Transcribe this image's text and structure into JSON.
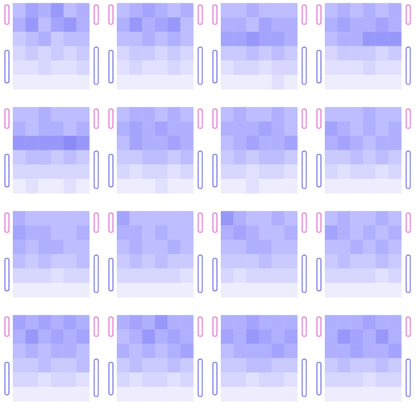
{
  "chart_data": [
    {
      "type": "heatmap",
      "tick_labels": false,
      "grid": false,
      "value_range": [
        0,
        10
      ],
      "cells": [
        [
          5,
          7,
          6,
          8,
          5,
          6
        ],
        [
          6,
          8,
          5,
          7,
          8,
          6
        ],
        [
          4,
          5,
          6,
          4,
          5,
          5
        ],
        [
          3,
          4,
          3,
          4,
          3,
          4
        ],
        [
          2,
          2,
          3,
          2,
          2,
          3
        ],
        [
          1,
          1,
          1,
          1,
          1,
          1
        ]
      ]
    },
    {
      "type": "heatmap",
      "tick_labels": false,
      "grid": false,
      "value_range": [
        0,
        10
      ],
      "cells": [
        [
          5,
          6,
          7,
          6,
          5,
          6
        ],
        [
          6,
          8,
          6,
          7,
          8,
          5
        ],
        [
          5,
          5,
          6,
          5,
          6,
          5
        ],
        [
          3,
          4,
          4,
          3,
          4,
          3
        ],
        [
          2,
          3,
          2,
          2,
          3,
          2
        ],
        [
          1,
          1,
          1,
          1,
          1,
          1
        ]
      ]
    },
    {
      "type": "heatmap",
      "tick_labels": false,
      "grid": false,
      "value_range": [
        0,
        10
      ],
      "cells": [
        [
          5,
          5,
          6,
          5,
          5,
          5
        ],
        [
          6,
          6,
          5,
          7,
          6,
          6
        ],
        [
          7,
          7,
          8,
          7,
          7,
          6
        ],
        [
          4,
          4,
          5,
          4,
          5,
          4
        ],
        [
          2,
          3,
          3,
          2,
          3,
          3
        ],
        [
          1,
          1,
          1,
          1,
          2,
          1
        ]
      ]
    },
    {
      "type": "heatmap",
      "tick_labels": false,
      "grid": false,
      "value_range": [
        0,
        10
      ],
      "cells": [
        [
          5,
          6,
          5,
          6,
          5,
          6
        ],
        [
          6,
          7,
          6,
          6,
          7,
          6
        ],
        [
          5,
          6,
          6,
          8,
          8,
          8
        ],
        [
          3,
          4,
          4,
          4,
          3,
          4
        ],
        [
          2,
          2,
          2,
          3,
          2,
          2
        ],
        [
          1,
          1,
          1,
          1,
          1,
          1
        ]
      ]
    },
    {
      "type": "heatmap",
      "tick_labels": false,
      "grid": false,
      "value_range": [
        0,
        10
      ],
      "cells": [
        [
          5,
          5,
          6,
          5,
          5,
          5
        ],
        [
          6,
          5,
          6,
          6,
          5,
          6
        ],
        [
          8,
          8,
          8,
          8,
          9,
          8
        ],
        [
          4,
          5,
          5,
          4,
          5,
          4
        ],
        [
          3,
          3,
          3,
          3,
          3,
          3
        ],
        [
          1,
          2,
          1,
          1,
          2,
          1
        ]
      ]
    },
    {
      "type": "heatmap",
      "tick_labels": false,
      "grid": false,
      "value_range": [
        0,
        10
      ],
      "cells": [
        [
          5,
          6,
          6,
          5,
          6,
          5
        ],
        [
          6,
          7,
          6,
          7,
          6,
          6
        ],
        [
          5,
          7,
          6,
          6,
          7,
          6
        ],
        [
          4,
          4,
          5,
          5,
          4,
          5
        ],
        [
          3,
          2,
          3,
          3,
          2,
          3
        ],
        [
          1,
          1,
          1,
          2,
          1,
          1
        ]
      ]
    },
    {
      "type": "heatmap",
      "tick_labels": false,
      "grid": false,
      "value_range": [
        0,
        10
      ],
      "cells": [
        [
          5,
          6,
          5,
          5,
          6,
          5
        ],
        [
          6,
          6,
          6,
          7,
          6,
          5
        ],
        [
          5,
          6,
          7,
          6,
          6,
          7
        ],
        [
          4,
          5,
          4,
          5,
          5,
          4
        ],
        [
          3,
          3,
          2,
          3,
          3,
          2
        ],
        [
          1,
          1,
          2,
          1,
          1,
          1
        ]
      ]
    },
    {
      "type": "heatmap",
      "tick_labels": false,
      "grid": false,
      "value_range": [
        0,
        10
      ],
      "cells": [
        [
          5,
          5,
          5,
          6,
          5,
          5
        ],
        [
          7,
          6,
          5,
          6,
          5,
          6
        ],
        [
          6,
          7,
          6,
          5,
          6,
          6
        ],
        [
          4,
          4,
          5,
          4,
          5,
          4
        ],
        [
          3,
          2,
          3,
          3,
          2,
          3
        ],
        [
          1,
          1,
          1,
          1,
          1,
          1
        ]
      ]
    },
    {
      "type": "heatmap",
      "tick_labels": false,
      "grid": false,
      "value_range": [
        0,
        10
      ],
      "cells": [
        [
          6,
          5,
          5,
          5,
          5,
          5
        ],
        [
          7,
          6,
          6,
          5,
          5,
          6
        ],
        [
          6,
          5,
          6,
          6,
          5,
          5
        ],
        [
          5,
          4,
          5,
          4,
          4,
          5
        ],
        [
          3,
          3,
          3,
          2,
          3,
          3
        ],
        [
          1,
          1,
          1,
          1,
          1,
          1
        ]
      ]
    },
    {
      "type": "heatmap",
      "tick_labels": false,
      "grid": false,
      "value_range": [
        0,
        10
      ],
      "cells": [
        [
          7,
          5,
          5,
          5,
          5,
          5
        ],
        [
          6,
          6,
          5,
          6,
          5,
          5
        ],
        [
          5,
          6,
          5,
          5,
          6,
          5
        ],
        [
          4,
          5,
          4,
          5,
          4,
          4
        ],
        [
          3,
          3,
          3,
          3,
          3,
          2
        ],
        [
          1,
          1,
          1,
          1,
          1,
          1
        ]
      ]
    },
    {
      "type": "heatmap",
      "tick_labels": false,
      "grid": false,
      "value_range": [
        0,
        10
      ],
      "cells": [
        [
          8,
          6,
          5,
          5,
          6,
          5
        ],
        [
          6,
          7,
          6,
          5,
          5,
          6
        ],
        [
          5,
          5,
          6,
          6,
          5,
          5
        ],
        [
          4,
          4,
          4,
          5,
          4,
          4
        ],
        [
          3,
          2,
          3,
          3,
          3,
          3
        ],
        [
          1,
          1,
          1,
          1,
          1,
          1
        ]
      ]
    },
    {
      "type": "heatmap",
      "tick_labels": false,
      "grid": false,
      "value_range": [
        0,
        10
      ],
      "cells": [
        [
          5,
          6,
          5,
          5,
          6,
          5
        ],
        [
          7,
          6,
          5,
          6,
          5,
          6
        ],
        [
          5,
          5,
          6,
          5,
          6,
          5
        ],
        [
          4,
          5,
          4,
          4,
          5,
          4
        ],
        [
          3,
          3,
          3,
          3,
          2,
          3
        ],
        [
          1,
          1,
          1,
          1,
          1,
          1
        ]
      ]
    },
    {
      "type": "heatmap",
      "tick_labels": false,
      "grid": false,
      "value_range": [
        0,
        10
      ],
      "cells": [
        [
          7,
          6,
          7,
          6,
          7,
          6
        ],
        [
          6,
          8,
          6,
          7,
          6,
          7
        ],
        [
          5,
          6,
          5,
          6,
          6,
          5
        ],
        [
          4,
          4,
          5,
          4,
          4,
          5
        ],
        [
          3,
          3,
          2,
          3,
          3,
          2
        ],
        [
          1,
          1,
          1,
          1,
          1,
          1
        ]
      ]
    },
    {
      "type": "heatmap",
      "tick_labels": false,
      "grid": false,
      "value_range": [
        0,
        10
      ],
      "cells": [
        [
          6,
          7,
          6,
          8,
          6,
          6
        ],
        [
          5,
          6,
          8,
          6,
          7,
          6
        ],
        [
          6,
          5,
          6,
          5,
          6,
          7
        ],
        [
          4,
          5,
          4,
          4,
          5,
          4
        ],
        [
          3,
          2,
          3,
          3,
          2,
          3
        ],
        [
          1,
          1,
          1,
          1,
          1,
          1
        ]
      ]
    },
    {
      "type": "heatmap",
      "tick_labels": false,
      "grid": false,
      "value_range": [
        0,
        10
      ],
      "cells": [
        [
          6,
          6,
          7,
          6,
          6,
          6
        ],
        [
          7,
          6,
          8,
          7,
          6,
          7
        ],
        [
          5,
          6,
          6,
          6,
          7,
          6
        ],
        [
          4,
          4,
          5,
          5,
          4,
          4
        ],
        [
          3,
          3,
          2,
          3,
          3,
          2
        ],
        [
          1,
          1,
          1,
          1,
          1,
          1
        ]
      ]
    },
    {
      "type": "heatmap",
      "tick_labels": false,
      "grid": false,
      "value_range": [
        0,
        10
      ],
      "cells": [
        [
          6,
          6,
          6,
          7,
          6,
          6
        ],
        [
          6,
          8,
          7,
          6,
          8,
          6
        ],
        [
          6,
          6,
          7,
          6,
          6,
          7
        ],
        [
          4,
          5,
          4,
          4,
          5,
          4
        ],
        [
          3,
          3,
          3,
          2,
          3,
          3
        ],
        [
          1,
          1,
          1,
          1,
          1,
          1
        ]
      ]
    }
  ]
}
